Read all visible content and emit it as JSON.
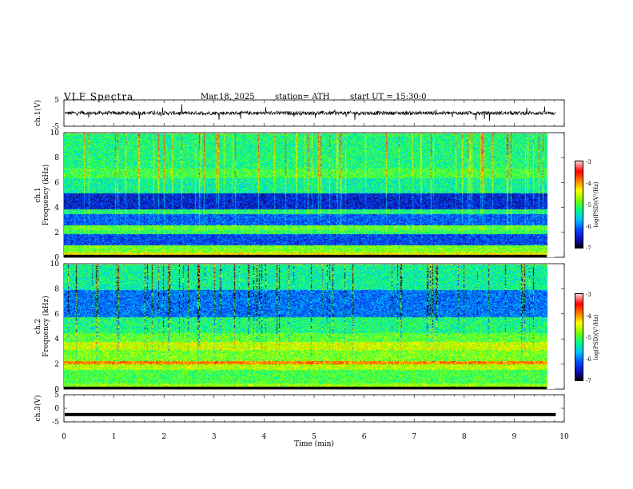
{
  "header": {
    "title": "VLF  Spectra",
    "date": "Mar.18, 2025",
    "station": "station= ATH",
    "start": "start  UT  =   15:30:0"
  },
  "chart_data": [
    {
      "type": "line",
      "panel": "ch1-waveform",
      "ylabel": "ch.1(V)",
      "ylim": [
        -5,
        5
      ],
      "yticklabels": [
        "5",
        "-5"
      ],
      "x_range_min": [
        0,
        9.83
      ],
      "description_level": "noise trace centred near 0 V with spikes",
      "baseline_v": 0
    },
    {
      "type": "heatmap",
      "panel": "ch1-spectrogram",
      "ylabel": "ch.1\nFrequency  (kHz)",
      "ylim": [
        0,
        10
      ],
      "yticklabels": [
        "0",
        "2",
        "4",
        "6",
        "8",
        "10"
      ],
      "x_range_min": [
        0,
        9.83
      ],
      "colorbar": {
        "label": "log(PSD)(V²/Hz)",
        "range": [
          -7,
          -3
        ],
        "ticklabels": [
          "-3",
          "-4",
          "-5",
          "-6",
          "-7"
        ]
      },
      "bands_khz_level": [
        [
          0.0,
          0.4,
          -4.3
        ],
        [
          0.4,
          1.0,
          -4.8
        ],
        [
          1.0,
          1.9,
          -6.2
        ],
        [
          1.9,
          2.2,
          -5.1
        ],
        [
          2.2,
          2.6,
          -4.9
        ],
        [
          2.6,
          3.5,
          -6.1
        ],
        [
          3.5,
          3.9,
          -5.2
        ],
        [
          3.9,
          5.2,
          -6.4
        ],
        [
          5.2,
          6.4,
          -5.3
        ],
        [
          6.4,
          7.2,
          -5.0
        ],
        [
          7.2,
          10.0,
          -5.2
        ]
      ]
    },
    {
      "type": "heatmap",
      "panel": "ch2-spectrogram",
      "ylabel": "ch.2\nFrequency  (kHz)",
      "ylim": [
        0,
        10
      ],
      "yticklabels": [
        "0",
        "2",
        "4",
        "6",
        "8",
        "10"
      ],
      "x_range_min": [
        0,
        9.83
      ],
      "colorbar": {
        "label": "log(PSD)(V²/Hz)",
        "range": [
          -7,
          -3
        ],
        "ticklabels": [
          "-3",
          "-4",
          "-5",
          "-6",
          "-7"
        ]
      },
      "bands_khz_level": [
        [
          0.0,
          0.5,
          -4.7
        ],
        [
          0.5,
          1.6,
          -5.0
        ],
        [
          1.6,
          2.0,
          -4.6
        ],
        [
          2.0,
          2.3,
          -3.9
        ],
        [
          2.3,
          3.2,
          -4.8
        ],
        [
          3.2,
          3.8,
          -4.5
        ],
        [
          3.8,
          4.5,
          -4.9
        ],
        [
          4.5,
          5.8,
          -5.2
        ],
        [
          5.8,
          8.0,
          -6.0
        ],
        [
          8.0,
          10.0,
          -5.3
        ]
      ]
    },
    {
      "type": "line",
      "panel": "ch3-waveform",
      "ylabel": "ch.3(V)",
      "ylim": [
        -5,
        5
      ],
      "yticklabels": [
        "5",
        "0",
        "-5"
      ],
      "x_range_min": [
        0,
        9.83
      ],
      "baseline_v": -2.3
    }
  ],
  "xaxis": {
    "label": "Time  (min)",
    "ticks": [
      0,
      1,
      2,
      3,
      4,
      5,
      6,
      7,
      8,
      9,
      10
    ],
    "ticklabels": [
      "0",
      "1",
      "2",
      "3",
      "4",
      "5",
      "6",
      "7",
      "8",
      "9",
      "10"
    ]
  },
  "colors": {
    "scale": [
      "#000000",
      "#1010c0",
      "#0050ff",
      "#00c8ff",
      "#00ff80",
      "#80ff00",
      "#ffff00",
      "#ff8000",
      "#ff0000",
      "#ffc8c8"
    ]
  }
}
